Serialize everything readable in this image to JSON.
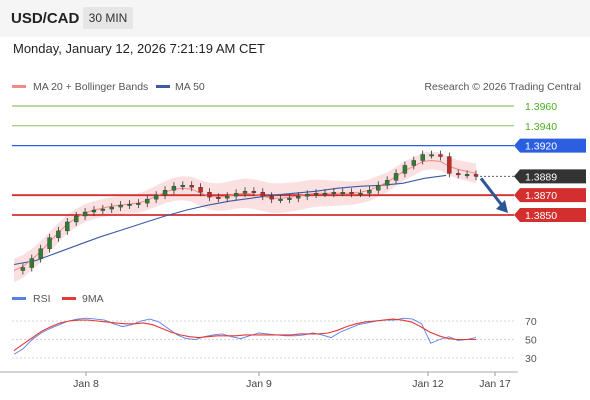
{
  "header": {
    "symbol": "USD/CAD",
    "timeframe": "30 MIN"
  },
  "datetime": "Monday, January 12, 2026 7:21:19 AM CET",
  "legend": {
    "ma20_label": "MA 20 + Bollinger Bands",
    "ma50_label": "MA 50",
    "copyright": "Research © 2026 Trading Central",
    "rsi_label": "RSI",
    "ma9_label": "9MA"
  },
  "colors": {
    "ma20": "#f28b82",
    "ma50": "#3b5ba5",
    "band": "#fadadd",
    "bull": "#2e7d32",
    "bear": "#c62828",
    "resistance": "#7cb342",
    "pivot": "#2c5fe0",
    "support": "#d32f2f",
    "rsi": "#5b7fe6",
    "rsi_ma": "#e53935",
    "price_tag": "#333333",
    "arrow": "#2b5797"
  },
  "levels": [
    {
      "value": 1.396,
      "label": "1.3960",
      "kind": "resistance"
    },
    {
      "value": 1.394,
      "label": "1.3940",
      "kind": "resistance"
    },
    {
      "value": 1.392,
      "label": "1.3920",
      "kind": "pivot"
    },
    {
      "value": 1.3889,
      "label": "1.3889",
      "kind": "last"
    },
    {
      "value": 1.387,
      "label": "1.3870",
      "kind": "support"
    },
    {
      "value": 1.385,
      "label": "1.3850",
      "kind": "support"
    }
  ],
  "rsi_ticks": [
    "70",
    "50",
    "30"
  ],
  "x_ticks": [
    "Jan 8",
    "Jan 9",
    "Jan 12",
    "Jan 17"
  ],
  "chart_data": {
    "type": "line",
    "title": "USD/CAD",
    "timeframe": "30 MIN",
    "x": [
      "Jan 8",
      "Jan 9",
      "Jan 12",
      "Jan 17"
    ],
    "price_close": [
      1.3794,
      1.3797,
      1.3806,
      1.3816,
      1.3827,
      1.3834,
      1.3843,
      1.3849,
      1.3853,
      1.3855,
      1.3856,
      1.3858,
      1.386,
      1.3861,
      1.3862,
      1.3866,
      1.387,
      1.3875,
      1.3879,
      1.388,
      1.3878,
      1.3873,
      1.3868,
      1.3867,
      1.3869,
      1.3872,
      1.3874,
      1.3873,
      1.3869,
      1.3866,
      1.3866,
      1.3867,
      1.3869,
      1.3871,
      1.3872,
      1.3872,
      1.3873,
      1.3873,
      1.3872,
      1.3872,
      1.3875,
      1.388,
      1.3885,
      1.3892,
      1.39,
      1.3905,
      1.3911,
      1.3911,
      1.3909,
      1.3892,
      1.3891,
      1.3891,
      1.3889
    ],
    "ma20": [
      1.3794,
      1.3798,
      1.3805,
      1.3813,
      1.3823,
      1.3832,
      1.3841,
      1.3847,
      1.3852,
      1.3855,
      1.3857,
      1.3859,
      1.386,
      1.3861,
      1.3862,
      1.3865,
      1.3869,
      1.3873,
      1.3876,
      1.3877,
      1.3876,
      1.3872,
      1.3869,
      1.3868,
      1.3869,
      1.3871,
      1.3872,
      1.3871,
      1.3869,
      1.3867,
      1.3867,
      1.3868,
      1.3869,
      1.3871,
      1.3872,
      1.3872,
      1.3872,
      1.3872,
      1.3872,
      1.3873,
      1.3875,
      1.3879,
      1.3883,
      1.3889,
      1.3895,
      1.3899,
      1.3904,
      1.3905,
      1.3904,
      1.3899,
      1.3896,
      1.3894,
      1.3892
    ],
    "ma50": [
      1.38,
      1.3804,
      1.3812,
      1.382,
      1.3828,
      1.3835,
      1.3842,
      1.3849,
      1.3855,
      1.386,
      1.3864,
      1.3867,
      1.387,
      1.3872,
      1.3874,
      1.3877,
      1.3879,
      1.388,
      1.3882,
      1.3887,
      1.389
    ],
    "ylim": [
      1.3784,
      1.3973
    ],
    "support_levels": [
      1.387,
      1.385
    ],
    "pivot": 1.392,
    "resistance_levels": [
      1.394,
      1.396
    ],
    "last_price": 1.3889,
    "rsi": [
      34,
      40,
      50,
      57,
      62,
      66,
      70,
      72,
      73,
      72,
      71,
      67,
      64,
      66,
      70,
      72,
      69,
      62,
      55,
      51,
      50,
      53,
      55,
      56,
      53,
      51,
      54,
      57,
      56,
      55,
      54,
      54,
      55,
      57,
      55,
      52,
      58,
      62,
      66,
      68,
      70,
      71,
      71,
      73,
      72,
      67,
      46,
      50,
      53,
      49,
      50,
      52
    ],
    "rsi_ma9": [
      38,
      45,
      52,
      59,
      64,
      68,
      70,
      71,
      71,
      70,
      69,
      68,
      67,
      67,
      68,
      66,
      62,
      58,
      55,
      53,
      52,
      53,
      54,
      54,
      54,
      55,
      55,
      55,
      55,
      55,
      55,
      56,
      56,
      56,
      57,
      60,
      64,
      67,
      69,
      70,
      71,
      72,
      71,
      69,
      64,
      58,
      54,
      51,
      50,
      50,
      50
    ],
    "rsi_ylim": [
      20,
      85
    ],
    "legend": "top-left",
    "grid": false
  }
}
